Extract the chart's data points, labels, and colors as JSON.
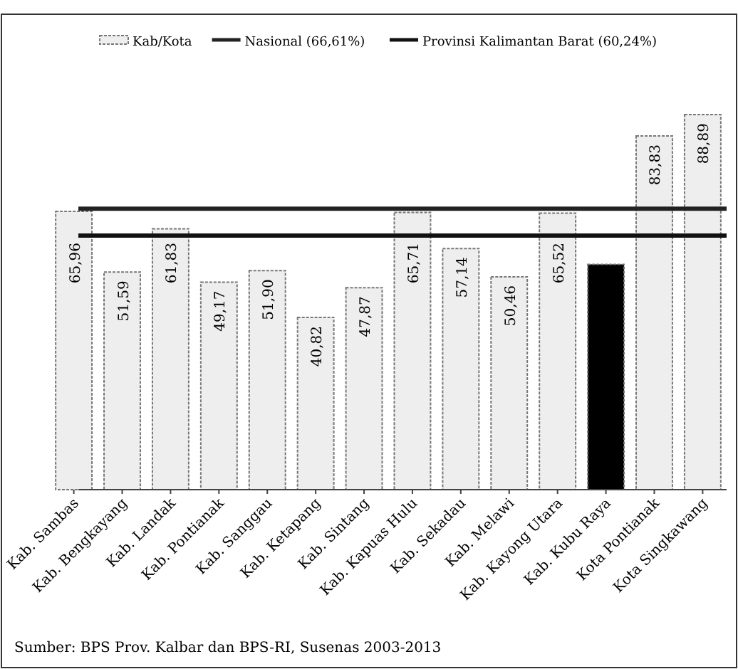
{
  "chart_data": {
    "type": "bar",
    "categories": [
      "Kab. Sambas",
      "Kab. Bengkayang",
      "Kab. Landak",
      "Kab. Pontianak",
      "Kab. Sanggau",
      "Kab. Ketapang",
      "Kab. Sintang",
      "Kab. Kapuas Hulu",
      "Kab. Sekadau",
      "Kab. Melawi",
      "Kab. Kayong Utara",
      "Kab. Kubu Raya",
      "Kota Pontianak",
      "Kota Singkawang"
    ],
    "series": [
      {
        "name": "Kab/Kota",
        "color": "#eeeeee",
        "colors": [
          "#eeeeee",
          "#eeeeee",
          "#eeeeee",
          "#eeeeee",
          "#eeeeee",
          "#eeeeee",
          "#eeeeee",
          "#eeeeee",
          "#eeeeee",
          "#eeeeee",
          "#eeeeee",
          "#000000",
          "#eeeeee",
          "#eeeeee"
        ],
        "values": [
          65.96,
          51.59,
          61.83,
          49.17,
          51.9,
          40.82,
          47.87,
          65.71,
          57.14,
          50.46,
          65.52,
          53.4,
          83.83,
          88.89
        ],
        "value_labels": [
          "65,96",
          "51,59",
          "61,83",
          "49,17",
          "51,90",
          "40,82",
          "47,87",
          "65,71",
          "57,14",
          "50,46",
          "65,52",
          null,
          "83,83",
          "88,89"
        ]
      }
    ],
    "ref_lines": [
      {
        "axis": "y",
        "value": 66.61,
        "label": "Nasional (66,61%)",
        "color": "#222222"
      },
      {
        "axis": "y",
        "value": 60.24,
        "label": "Provinsi Kalimantan Barat (60,24%)",
        "color": "#111111"
      }
    ],
    "legend": "top",
    "annotations": [
      "Sumber: BPS Prov. Kalbar dan BPS-RI, Susenas 2003-2013"
    ]
  }
}
